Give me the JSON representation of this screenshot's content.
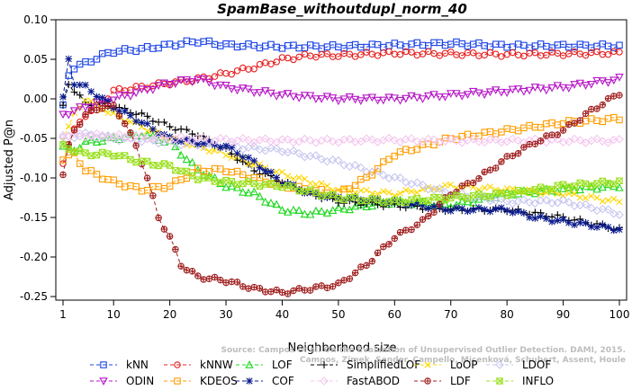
{
  "chart_data": {
    "type": "line",
    "title": "SpamBase_withoutdupl_norm_40",
    "xlabel": "Neighborhood size",
    "ylabel": "Adjusted P@n",
    "xlim": [
      1,
      100
    ],
    "ylim": [
      -0.25,
      0.1
    ],
    "xticks": [
      1,
      10,
      20,
      30,
      40,
      50,
      60,
      70,
      80,
      90,
      100
    ],
    "yticks": [
      0.1,
      0.05,
      0.0,
      -0.05,
      -0.1,
      -0.15,
      -0.2,
      -0.25
    ],
    "ytick_labels": [
      "0.10",
      "0.05",
      "0.00",
      "-0.05",
      "-0.10",
      "-0.15",
      "-0.20",
      "-0.25"
    ],
    "grid": false,
    "legend_position": "bottom",
    "watermark": [
      "Source: Campos et al. On the Evaluation of Unsupervised Outlier Detection. DAMI, 2015.",
      "Campos, Zimek, Sander, Campello, Micenková, Schubert, Assent, Houle"
    ],
    "series": [
      {
        "name": "kNN",
        "color": "#1c44e6",
        "marker": "square",
        "anchors": [
          [
            1,
            -0.01
          ],
          [
            2,
            0.03
          ],
          [
            3,
            0.04
          ],
          [
            5,
            0.045
          ],
          [
            8,
            0.055
          ],
          [
            10,
            0.06
          ],
          [
            15,
            0.063
          ],
          [
            20,
            0.068
          ],
          [
            25,
            0.073
          ],
          [
            30,
            0.068
          ],
          [
            40,
            0.066
          ],
          [
            50,
            0.066
          ],
          [
            60,
            0.068
          ],
          [
            70,
            0.07
          ],
          [
            80,
            0.067
          ],
          [
            90,
            0.067
          ],
          [
            100,
            0.067
          ]
        ]
      },
      {
        "name": "kNNW",
        "color": "#e52020",
        "marker": "circle",
        "anchors": [
          [
            1,
            -0.08
          ],
          [
            2,
            -0.06
          ],
          [
            3,
            -0.04
          ],
          [
            5,
            -0.02
          ],
          [
            8,
            -0.005
          ],
          [
            10,
            0.01
          ],
          [
            15,
            0.015
          ],
          [
            20,
            0.02
          ],
          [
            25,
            0.025
          ],
          [
            30,
            0.032
          ],
          [
            35,
            0.04
          ],
          [
            40,
            0.05
          ],
          [
            45,
            0.055
          ],
          [
            50,
            0.055
          ],
          [
            60,
            0.058
          ],
          [
            70,
            0.057
          ],
          [
            80,
            0.056
          ],
          [
            90,
            0.057
          ],
          [
            100,
            0.058
          ]
        ]
      },
      {
        "name": "LOF",
        "color": "#1fd71f",
        "marker": "triangle-up",
        "anchors": [
          [
            1,
            -0.06
          ],
          [
            3,
            -0.065
          ],
          [
            5,
            -0.055
          ],
          [
            10,
            -0.05
          ],
          [
            15,
            -0.045
          ],
          [
            20,
            -0.055
          ],
          [
            25,
            -0.09
          ],
          [
            30,
            -0.11
          ],
          [
            35,
            -0.12
          ],
          [
            40,
            -0.14
          ],
          [
            45,
            -0.145
          ],
          [
            50,
            -0.14
          ],
          [
            55,
            -0.135
          ],
          [
            60,
            -0.13
          ],
          [
            70,
            -0.135
          ],
          [
            80,
            -0.12
          ],
          [
            90,
            -0.115
          ],
          [
            100,
            -0.11
          ]
        ]
      },
      {
        "name": "SimplifiedLOF",
        "color": "#000000",
        "marker": "plus",
        "anchors": [
          [
            1,
            -0.01
          ],
          [
            2,
            0.02
          ],
          [
            3,
            0.01
          ],
          [
            5,
            -0.005
          ],
          [
            10,
            -0.01
          ],
          [
            15,
            -0.02
          ],
          [
            20,
            -0.035
          ],
          [
            25,
            -0.045
          ],
          [
            30,
            -0.065
          ],
          [
            35,
            -0.09
          ],
          [
            40,
            -0.105
          ],
          [
            45,
            -0.12
          ],
          [
            50,
            -0.13
          ],
          [
            60,
            -0.135
          ],
          [
            70,
            -0.14
          ],
          [
            80,
            -0.14
          ],
          [
            90,
            -0.15
          ],
          [
            100,
            -0.165
          ]
        ]
      },
      {
        "name": "LoOP",
        "color": "#ffd700",
        "marker": "x",
        "anchors": [
          [
            1,
            -0.05
          ],
          [
            3,
            -0.02
          ],
          [
            5,
            0.0
          ],
          [
            10,
            -0.02
          ],
          [
            15,
            -0.035
          ],
          [
            20,
            -0.05
          ],
          [
            30,
            -0.07
          ],
          [
            40,
            -0.095
          ],
          [
            50,
            -0.115
          ],
          [
            60,
            -0.12
          ],
          [
            70,
            -0.11
          ],
          [
            80,
            -0.115
          ],
          [
            90,
            -0.12
          ],
          [
            100,
            -0.13
          ]
        ]
      },
      {
        "name": "LDOF",
        "color": "#c6c6ef",
        "marker": "diamond",
        "anchors": [
          [
            1,
            -0.05
          ],
          [
            5,
            -0.045
          ],
          [
            10,
            -0.05
          ],
          [
            20,
            -0.055
          ],
          [
            30,
            -0.06
          ],
          [
            40,
            -0.065
          ],
          [
            50,
            -0.08
          ],
          [
            60,
            -0.1
          ],
          [
            70,
            -0.12
          ],
          [
            80,
            -0.13
          ],
          [
            90,
            -0.13
          ],
          [
            100,
            -0.145
          ]
        ]
      },
      {
        "name": "ODIN",
        "color": "#b516c6",
        "marker": "triangle-down",
        "anchors": [
          [
            1,
            -0.02
          ],
          [
            5,
            -0.01
          ],
          [
            10,
            0.0
          ],
          [
            15,
            0.01
          ],
          [
            20,
            0.02
          ],
          [
            25,
            0.025
          ],
          [
            30,
            0.015
          ],
          [
            40,
            0.005
          ],
          [
            50,
            0.0
          ],
          [
            60,
            0.0
          ],
          [
            70,
            0.005
          ],
          [
            80,
            0.01
          ],
          [
            90,
            0.015
          ],
          [
            100,
            0.025
          ]
        ]
      },
      {
        "name": "KDEOS",
        "color": "#ff9c00",
        "marker": "square",
        "anchors": [
          [
            1,
            -0.075
          ],
          [
            3,
            -0.07
          ],
          [
            5,
            -0.09
          ],
          [
            10,
            -0.105
          ],
          [
            15,
            -0.115
          ],
          [
            20,
            -0.11
          ],
          [
            25,
            -0.09
          ],
          [
            30,
            -0.09
          ],
          [
            40,
            -0.11
          ],
          [
            50,
            -0.12
          ],
          [
            55,
            -0.1
          ],
          [
            60,
            -0.07
          ],
          [
            70,
            -0.05
          ],
          [
            80,
            -0.04
          ],
          [
            90,
            -0.03
          ],
          [
            100,
            -0.025
          ]
        ]
      },
      {
        "name": "COF",
        "color": "#0a1a8c",
        "marker": "asterisk",
        "anchors": [
          [
            1,
            0.0
          ],
          [
            2,
            0.05
          ],
          [
            3,
            0.02
          ],
          [
            5,
            0.015
          ],
          [
            8,
            0.0
          ],
          [
            10,
            -0.01
          ],
          [
            15,
            -0.03
          ],
          [
            20,
            -0.05
          ],
          [
            25,
            -0.055
          ],
          [
            30,
            -0.06
          ],
          [
            35,
            -0.08
          ],
          [
            40,
            -0.105
          ],
          [
            45,
            -0.12
          ],
          [
            50,
            -0.125
          ],
          [
            60,
            -0.13
          ],
          [
            70,
            -0.14
          ],
          [
            80,
            -0.14
          ],
          [
            85,
            -0.15
          ],
          [
            90,
            -0.155
          ],
          [
            100,
            -0.165
          ]
        ]
      },
      {
        "name": "FastABOD",
        "color": "#f4c6ee",
        "marker": "diamond",
        "anchors": [
          [
            1,
            -0.045
          ],
          [
            10,
            -0.047
          ],
          [
            20,
            -0.05
          ],
          [
            30,
            -0.052
          ],
          [
            40,
            -0.053
          ],
          [
            50,
            -0.053
          ],
          [
            60,
            -0.052
          ],
          [
            70,
            -0.053
          ],
          [
            80,
            -0.053
          ],
          [
            90,
            -0.053
          ],
          [
            100,
            -0.053
          ]
        ]
      },
      {
        "name": "LDF",
        "color": "#a02020",
        "marker": "circle-plus",
        "anchors": [
          [
            1,
            -0.095
          ],
          [
            2,
            -0.06
          ],
          [
            3,
            -0.04
          ],
          [
            5,
            -0.02
          ],
          [
            8,
            -0.01
          ],
          [
            10,
            -0.01
          ],
          [
            12,
            -0.03
          ],
          [
            14,
            -0.06
          ],
          [
            16,
            -0.1
          ],
          [
            18,
            -0.15
          ],
          [
            20,
            -0.175
          ],
          [
            22,
            -0.21
          ],
          [
            25,
            -0.225
          ],
          [
            30,
            -0.23
          ],
          [
            35,
            -0.24
          ],
          [
            40,
            -0.245
          ],
          [
            45,
            -0.24
          ],
          [
            50,
            -0.235
          ],
          [
            55,
            -0.21
          ],
          [
            60,
            -0.175
          ],
          [
            65,
            -0.155
          ],
          [
            70,
            -0.12
          ],
          [
            75,
            -0.1
          ],
          [
            80,
            -0.075
          ],
          [
            85,
            -0.055
          ],
          [
            90,
            -0.04
          ],
          [
            95,
            -0.015
          ],
          [
            100,
            0.007
          ]
        ]
      },
      {
        "name": "INFLO",
        "color": "#9be01f",
        "marker": "x-square",
        "anchors": [
          [
            1,
            -0.06
          ],
          [
            3,
            -0.065
          ],
          [
            5,
            -0.07
          ],
          [
            10,
            -0.07
          ],
          [
            15,
            -0.08
          ],
          [
            20,
            -0.085
          ],
          [
            25,
            -0.1
          ],
          [
            30,
            -0.105
          ],
          [
            40,
            -0.11
          ],
          [
            50,
            -0.125
          ],
          [
            60,
            -0.13
          ],
          [
            70,
            -0.125
          ],
          [
            80,
            -0.12
          ],
          [
            90,
            -0.11
          ],
          [
            100,
            -0.105
          ]
        ]
      }
    ]
  }
}
